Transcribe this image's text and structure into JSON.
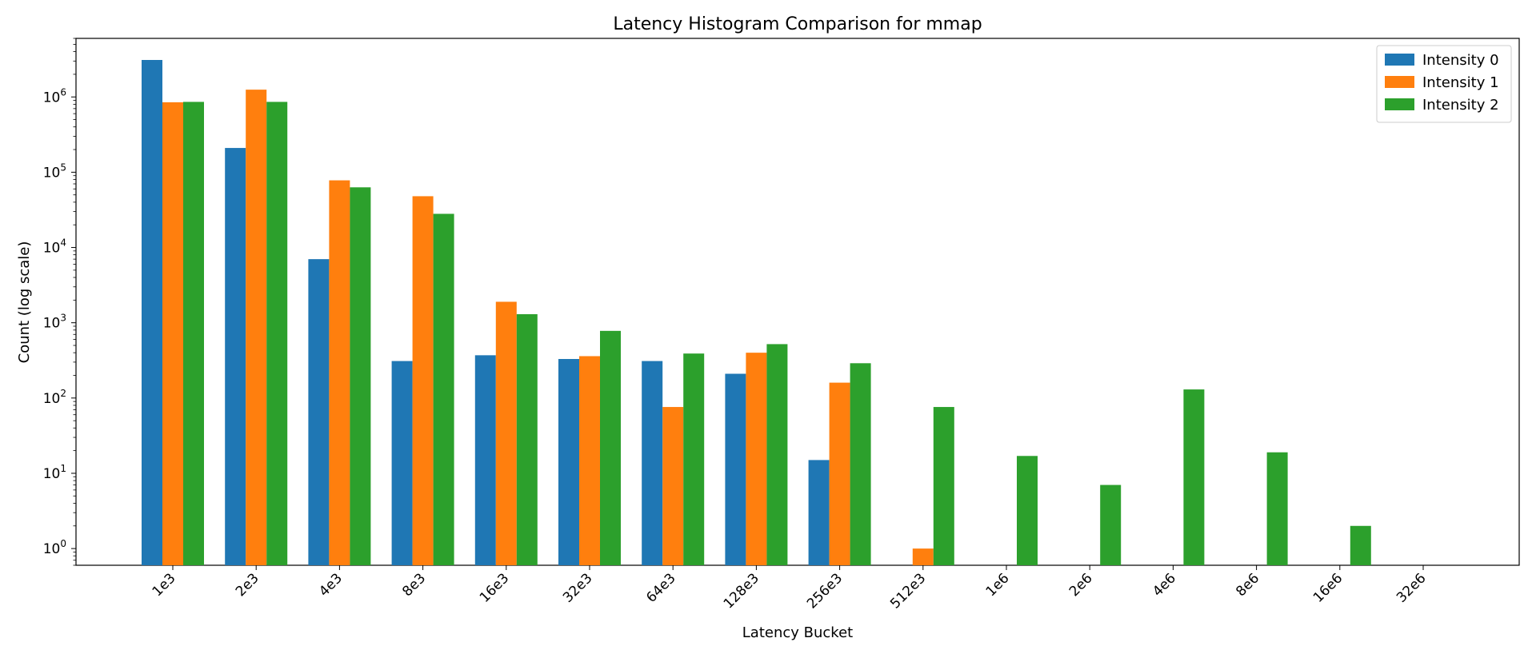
{
  "chart_data": {
    "type": "bar",
    "title": "Latency Histogram Comparison for mmap",
    "xlabel": "Latency Bucket",
    "ylabel": "Count (log scale)",
    "yscale": "log",
    "ylim": [
      0.6,
      6000000
    ],
    "grid": false,
    "legend_position": "top-right",
    "categories": [
      "1e3",
      "2e3",
      "4e3",
      "8e3",
      "16e3",
      "32e3",
      "64e3",
      "128e3",
      "256e3",
      "512e3",
      "1e6",
      "2e6",
      "4e6",
      "8e6",
      "16e6",
      "32e6"
    ],
    "y_ticks": [
      {
        "value": 1,
        "base": "10",
        "exp": "0"
      },
      {
        "value": 10,
        "base": "10",
        "exp": "1"
      },
      {
        "value": 100,
        "base": "10",
        "exp": "2"
      },
      {
        "value": 1000,
        "base": "10",
        "exp": "3"
      },
      {
        "value": 10000,
        "base": "10",
        "exp": "4"
      },
      {
        "value": 100000,
        "base": "10",
        "exp": "5"
      },
      {
        "value": 1000000,
        "base": "10",
        "exp": "6"
      }
    ],
    "series": [
      {
        "name": "Intensity 0",
        "color": "#1f77b4",
        "values": [
          3100000,
          210000,
          7000,
          310,
          370,
          330,
          310,
          210,
          15,
          null,
          null,
          null,
          null,
          null,
          null,
          null
        ]
      },
      {
        "name": "Intensity 1",
        "color": "#ff7f0e",
        "values": [
          850000,
          1250000,
          78000,
          48000,
          1900,
          360,
          76,
          400,
          160,
          1,
          null,
          null,
          null,
          null,
          null,
          null
        ]
      },
      {
        "name": "Intensity 2",
        "color": "#2ca02c",
        "values": [
          860000,
          860000,
          63000,
          28000,
          1300,
          780,
          390,
          520,
          290,
          76,
          17,
          7,
          130,
          19,
          2,
          null
        ]
      }
    ]
  }
}
